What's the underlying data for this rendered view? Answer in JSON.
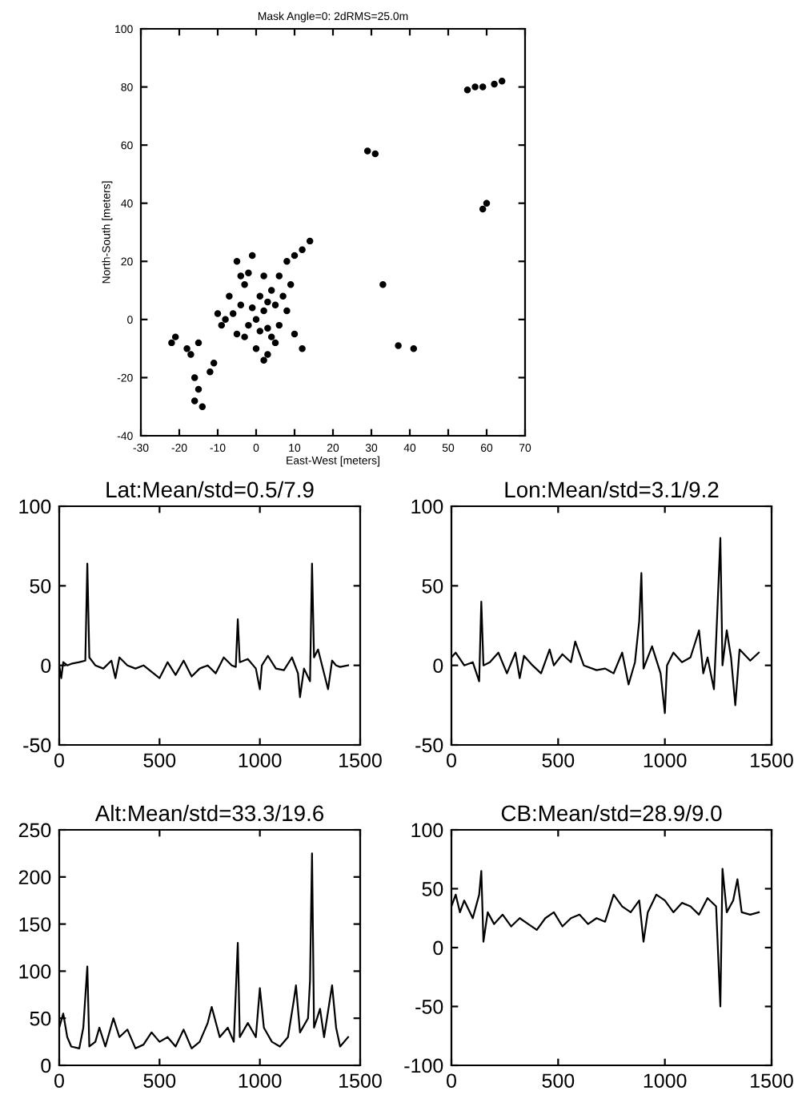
{
  "chart_data": [
    {
      "type": "scatter",
      "title": "Mask Angle=0: 2dRMS=25.0m",
      "xlabel": "East-West [meters]",
      "ylabel": "North-South [meters]",
      "xlim": [
        -30,
        70
      ],
      "ylim": [
        -40,
        100
      ],
      "xticks": [
        -30,
        -20,
        -10,
        0,
        10,
        20,
        30,
        40,
        50,
        60,
        70
      ],
      "yticks": [
        -40,
        -20,
        0,
        20,
        40,
        60,
        80,
        100
      ],
      "marker": "circle",
      "series": [
        {
          "color": "#000000",
          "x": [
            0,
            2,
            -2,
            3,
            -4,
            1,
            4,
            -3,
            5,
            -6,
            6,
            -8,
            8,
            2,
            -2,
            -5,
            -1,
            0,
            2,
            3,
            -5,
            5,
            7,
            -7,
            10,
            12,
            -10,
            -9,
            4,
            -1,
            1,
            3,
            -3,
            8,
            10,
            12,
            14,
            9,
            -4,
            6,
            -15,
            -17,
            -18,
            -21,
            -22,
            -16,
            -15,
            -16,
            -14,
            -12,
            -11,
            29,
            31,
            33,
            37,
            41,
            55,
            57,
            59,
            62,
            64,
            60,
            59
          ],
          "values": [
            0,
            3,
            -2,
            -3,
            5,
            8,
            10,
            12,
            5,
            2,
            -2,
            0,
            3,
            15,
            16,
            20,
            22,
            -10,
            -14,
            -12,
            -5,
            -8,
            8,
            8,
            -5,
            -10,
            2,
            -2,
            -6,
            4,
            -4,
            6,
            -6,
            20,
            22,
            24,
            27,
            12,
            15,
            15,
            -8,
            -12,
            -10,
            -6,
            -8,
            -20,
            -24,
            -28,
            -30,
            -18,
            -15,
            58,
            57,
            12,
            -9,
            -10,
            79,
            80,
            80,
            81,
            82,
            40,
            38
          ]
        }
      ]
    },
    {
      "type": "line",
      "title": "Lat:Mean/std=0.5/7.9",
      "xlim": [
        0,
        1500
      ],
      "ylim": [
        -50,
        100
      ],
      "xticks": [
        0,
        500,
        1000,
        1500
      ],
      "yticks": [
        -50,
        0,
        50,
        100
      ],
      "series": [
        {
          "color": "#000000",
          "x": [
            0,
            10,
            20,
            40,
            60,
            100,
            130,
            140,
            150,
            180,
            220,
            260,
            280,
            300,
            340,
            380,
            420,
            460,
            500,
            540,
            580,
            620,
            660,
            700,
            740,
            780,
            820,
            860,
            880,
            890,
            900,
            940,
            980,
            1000,
            1010,
            1040,
            1080,
            1120,
            1160,
            1190,
            1200,
            1220,
            1250,
            1260,
            1270,
            1290,
            1300,
            1340,
            1360,
            1380,
            1400,
            1440
          ],
          "values": [
            0,
            -8,
            2,
            0,
            1,
            2,
            3,
            64,
            5,
            0,
            -2,
            3,
            -8,
            5,
            0,
            -2,
            0,
            -4,
            -8,
            2,
            -6,
            3,
            -7,
            -2,
            0,
            -5,
            5,
            0,
            -1,
            29,
            2,
            4,
            -2,
            -15,
            0,
            6,
            -2,
            -3,
            5,
            -5,
            -20,
            -2,
            -10,
            64,
            5,
            10,
            5,
            -15,
            3,
            0,
            -1,
            0
          ]
        }
      ]
    },
    {
      "type": "line",
      "title": "Lon:Mean/std=3.1/9.2",
      "xlim": [
        0,
        1500
      ],
      "ylim": [
        -50,
        100
      ],
      "xticks": [
        0,
        500,
        1000,
        1500
      ],
      "yticks": [
        -50,
        0,
        50,
        100
      ],
      "series": [
        {
          "color": "#000000",
          "x": [
            0,
            20,
            40,
            60,
            100,
            130,
            140,
            150,
            180,
            220,
            260,
            300,
            320,
            340,
            380,
            420,
            460,
            480,
            520,
            560,
            580,
            620,
            680,
            720,
            760,
            800,
            830,
            860,
            880,
            890,
            900,
            940,
            980,
            1000,
            1010,
            1040,
            1080,
            1120,
            1160,
            1180,
            1200,
            1230,
            1240,
            1260,
            1270,
            1290,
            1310,
            1330,
            1350,
            1400,
            1440
          ],
          "values": [
            5,
            8,
            4,
            0,
            2,
            -10,
            40,
            0,
            2,
            8,
            -5,
            8,
            -8,
            6,
            0,
            -5,
            10,
            0,
            7,
            2,
            15,
            0,
            -3,
            -2,
            -5,
            8,
            -12,
            2,
            28,
            58,
            -2,
            12,
            -5,
            -30,
            0,
            8,
            2,
            5,
            22,
            -5,
            5,
            -15,
            15,
            80,
            0,
            22,
            5,
            -25,
            10,
            3,
            8
          ]
        }
      ]
    },
    {
      "type": "line",
      "title": "Alt:Mean/std=33.3/19.6",
      "xlim": [
        0,
        1500
      ],
      "ylim": [
        0,
        250
      ],
      "xticks": [
        0,
        500,
        1000,
        1500
      ],
      "yticks": [
        0,
        50,
        100,
        150,
        200,
        250
      ],
      "series": [
        {
          "color": "#000000",
          "x": [
            0,
            20,
            40,
            60,
            100,
            120,
            140,
            150,
            180,
            200,
            230,
            270,
            300,
            340,
            380,
            420,
            460,
            500,
            540,
            580,
            620,
            660,
            700,
            740,
            760,
            800,
            840,
            870,
            890,
            900,
            940,
            980,
            1000,
            1020,
            1060,
            1100,
            1140,
            1170,
            1180,
            1200,
            1240,
            1250,
            1260,
            1270,
            1300,
            1320,
            1360,
            1380,
            1400,
            1440
          ],
          "values": [
            40,
            55,
            30,
            20,
            18,
            40,
            105,
            20,
            25,
            40,
            20,
            50,
            30,
            38,
            18,
            22,
            35,
            25,
            30,
            20,
            38,
            18,
            25,
            45,
            62,
            30,
            40,
            25,
            130,
            30,
            45,
            30,
            82,
            40,
            25,
            20,
            30,
            70,
            85,
            35,
            50,
            90,
            225,
            40,
            60,
            30,
            85,
            40,
            20,
            30
          ]
        }
      ]
    },
    {
      "type": "line",
      "title": "CB:Mean/std=28.9/9.0",
      "xlim": [
        0,
        1500
      ],
      "ylim": [
        -100,
        100
      ],
      "xticks": [
        0,
        500,
        1000,
        1500
      ],
      "yticks": [
        -100,
        -50,
        0,
        50,
        100
      ],
      "series": [
        {
          "color": "#000000",
          "x": [
            0,
            20,
            40,
            60,
            100,
            130,
            140,
            150,
            170,
            200,
            240,
            280,
            320,
            360,
            400,
            440,
            480,
            520,
            560,
            600,
            640,
            680,
            720,
            760,
            800,
            840,
            880,
            900,
            920,
            960,
            1000,
            1040,
            1080,
            1120,
            1160,
            1200,
            1240,
            1260,
            1270,
            1290,
            1320,
            1340,
            1360,
            1400,
            1440
          ],
          "values": [
            35,
            45,
            30,
            40,
            25,
            45,
            65,
            5,
            30,
            20,
            28,
            18,
            25,
            20,
            15,
            25,
            30,
            18,
            25,
            28,
            20,
            25,
            22,
            45,
            35,
            30,
            40,
            5,
            30,
            45,
            40,
            30,
            38,
            35,
            28,
            42,
            35,
            -50,
            67,
            30,
            40,
            58,
            30,
            28,
            30
          ]
        }
      ]
    }
  ]
}
